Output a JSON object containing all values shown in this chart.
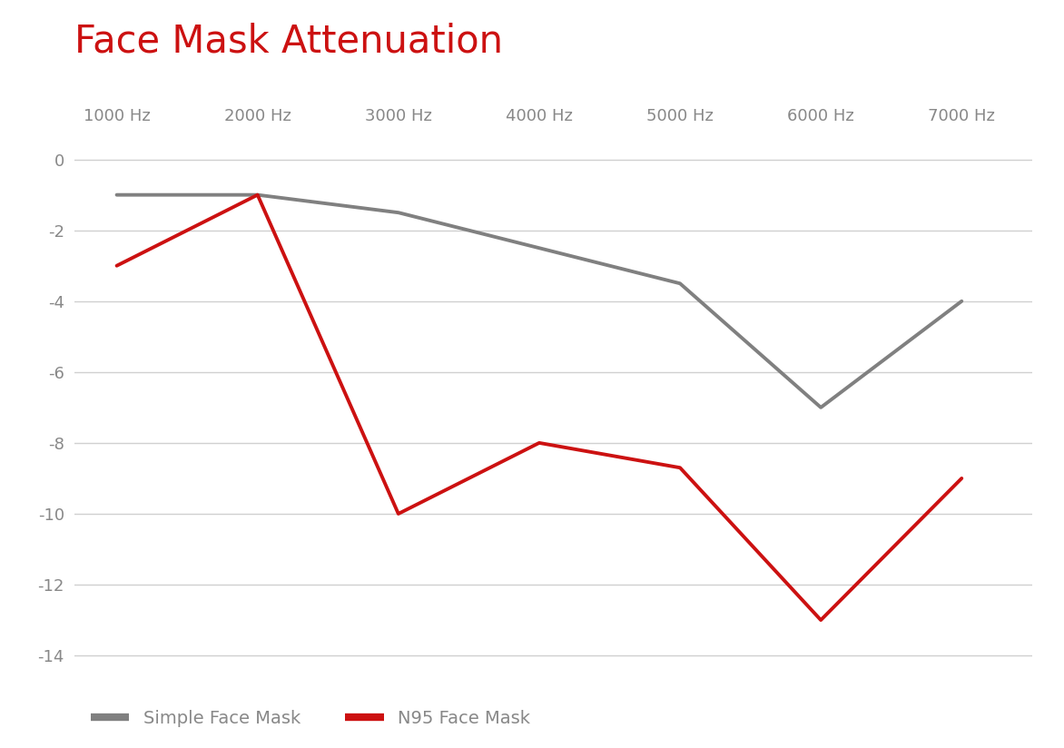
{
  "title": "Face Mask Attenuation",
  "title_color": "#cc1111",
  "title_fontsize": 30,
  "x_values": [
    1000,
    2000,
    3000,
    4000,
    5000,
    6000,
    7000
  ],
  "x_labels": [
    "1000 Hz",
    "2000 Hz",
    "3000 Hz",
    "4000 Hz",
    "5000 Hz",
    "6000 Hz",
    "7000 Hz"
  ],
  "simple_mask": [
    -1.0,
    -1.0,
    -1.5,
    -2.5,
    -3.5,
    -7.0,
    -4.0
  ],
  "n95_mask": [
    -3.0,
    -1.0,
    -10.0,
    -8.0,
    -8.7,
    -13.0,
    -9.0
  ],
  "simple_color": "#808080",
  "n95_color": "#cc1111",
  "ylim": [
    -14.5,
    0.7
  ],
  "yticks": [
    0,
    -2,
    -4,
    -6,
    -8,
    -10,
    -12,
    -14
  ],
  "xlim": [
    700,
    7500
  ],
  "background_color": "#ffffff",
  "grid_color": "#d0d0d0",
  "line_width": 2.8,
  "legend_simple": "Simple Face Mask",
  "legend_n95": "N95 Face Mask",
  "tick_label_color": "#888888",
  "tick_fontsize": 13
}
